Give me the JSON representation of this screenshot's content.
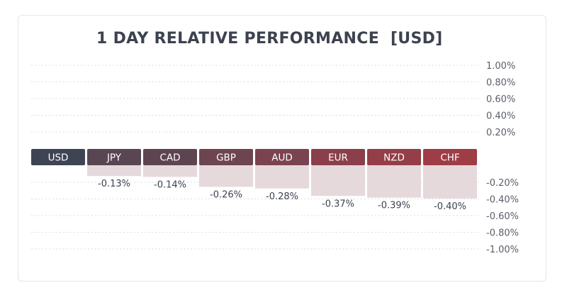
{
  "chart_data": {
    "type": "bar",
    "title": "1 DAY RELATIVE PERFORMANCE  [USD]",
    "categories": [
      "USD",
      "JPY",
      "CAD",
      "GBP",
      "AUD",
      "EUR",
      "NZD",
      "CHF"
    ],
    "values": [
      0.0,
      -0.13,
      -0.14,
      -0.26,
      -0.28,
      -0.37,
      -0.39,
      -0.4
    ],
    "value_labels": [
      "",
      "-0.13%",
      "-0.14%",
      "-0.26%",
      "-0.28%",
      "-0.37%",
      "-0.39%",
      "-0.40%"
    ],
    "ylim": [
      -1.0,
      1.0
    ],
    "y_ticks": [
      1.0,
      0.8,
      0.6,
      0.4,
      0.2,
      -0.2,
      -0.4,
      -0.6,
      -0.8,
      -1.0
    ],
    "y_tick_labels": [
      "1.00%",
      "0.80%",
      "0.60%",
      "0.40%",
      "0.20%",
      "-0.20%",
      "-0.40%",
      "-0.60%",
      "-0.80%",
      "-1.00%"
    ],
    "grid": true,
    "xlabel": "",
    "ylabel": "",
    "colors": {
      "header": [
        "#3e4453",
        "#5a4552",
        "#5e4450",
        "#6e4450",
        "#7a4350",
        "#8a3f4a",
        "#943e48",
        "#9e3d46"
      ],
      "bar_fill": "#e5d9dc",
      "grid": "#dcdde2",
      "tick_text": "#5a5e6a",
      "label_text": "#3d4250",
      "header_text": "#ffffff"
    }
  }
}
